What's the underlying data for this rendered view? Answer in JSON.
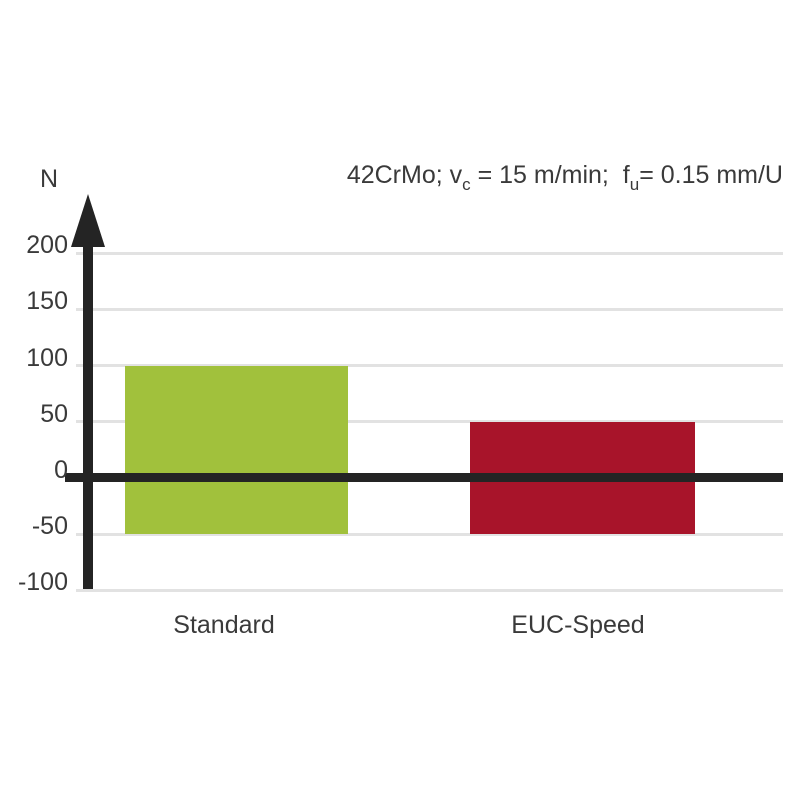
{
  "chart_data": {
    "type": "bar",
    "title": "42CrMo; vc = 15 m/min;  fu= 0.15 mm/U",
    "title_parts": [
      {
        "t": "42CrMo; v"
      },
      {
        "t": "c",
        "sub": true
      },
      {
        "t": " = 15 m/min;  f"
      },
      {
        "t": "u",
        "sub": true
      },
      {
        "t": "= 0.15 mm/U"
      }
    ],
    "ylabel": "N",
    "yticks": [
      200,
      150,
      100,
      50,
      0,
      -50,
      -100
    ],
    "ylim": [
      -125,
      235
    ],
    "grid": true,
    "legend": "none",
    "categories": [
      "Standard",
      "EUC-Speed"
    ],
    "bars": [
      {
        "label": "Standard",
        "from": -50,
        "to": 100,
        "color": "#a1c13c"
      },
      {
        "label": "EUC-Speed",
        "from": -50,
        "to": 50,
        "color": "#a8142a"
      }
    ]
  },
  "colors": {
    "axis": "#242424",
    "grid": "#e2e2e2",
    "text": "#3a3a3a",
    "background": "#ffffff",
    "bar_standard": "#a1c13c",
    "bar_euc_speed": "#a8142a"
  }
}
